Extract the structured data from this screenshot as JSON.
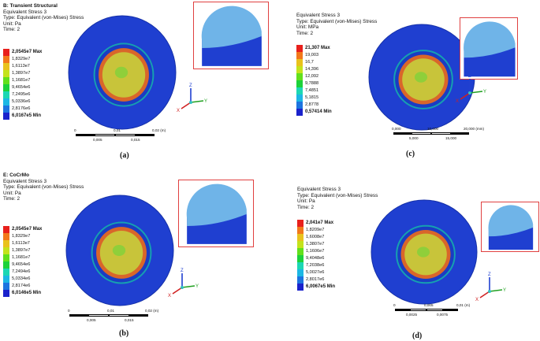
{
  "panels": {
    "a": {
      "title": "B: Transient Structural",
      "lines": [
        "Equivalent Stress 3",
        "Type: Equivalent (von-Mises) Stress",
        "Unit: Pa",
        "Time: 2"
      ],
      "legend": [
        "2,0545e7 Max",
        "1,8329e7",
        "1,6113e7",
        "1,3897e7",
        "1,1681e7",
        "9,4654e6",
        "7,2495e6",
        "5,0336e6",
        "2,8176e6",
        "6,0167e5 Min"
      ],
      "scale": {
        "top": [
          "0",
          "0,01",
          "0,02 (m)"
        ],
        "bottom": [
          "0,005",
          "0,015"
        ]
      },
      "caption": "(a)"
    },
    "c": {
      "title": "",
      "lines": [
        "Equivalent Stress 3",
        "Type: Equivalent (von-Mises) Stress",
        "Unit: MPa",
        "Time: 2"
      ],
      "legend": [
        "21,307 Max",
        "19,003",
        "16,7",
        "14,396",
        "12,092",
        "9,7888",
        "7,4851",
        "5,1815",
        "2,8778",
        "0,57414 Min"
      ],
      "scale": {
        "top": [
          "0,000",
          "10,000",
          "20,000 (mm)"
        ],
        "bottom": [
          "5,000",
          "15,000"
        ]
      },
      "caption": "(c)"
    },
    "b": {
      "title": "E: CoCrMo",
      "lines": [
        "Equivalent Stress 3",
        "Type: Equivalent (von-Mises) Stress",
        "Unit: Pa",
        "Time: 2"
      ],
      "legend": [
        "2,0545e7 Max",
        "1,8329e7",
        "1,6113e7",
        "1,3897e7",
        "1,1681e7",
        "9,4654e6",
        "7,2494e6",
        "5,0334e6",
        "2,8174e6",
        "6,0146e5 Min"
      ],
      "scale": {
        "top": [
          "0",
          "0,01",
          "0,02 (m)"
        ],
        "bottom": [
          "0,005",
          "0,015"
        ]
      },
      "caption": "(b)"
    },
    "d": {
      "title": "",
      "lines": [
        "Equivalent Stress 3",
        "Type: Equivalent (von-Mises) Stress",
        "Unit: Pa",
        "Time: 2"
      ],
      "legend": [
        "2,041e7 Max",
        "1,8209e7",
        "1,6008e7",
        "1,3807e7",
        "1,1606e7",
        "9,4048e6",
        "7,2038e6",
        "5,0027e6",
        "2,8017e6",
        "6,0067e5 Min"
      ],
      "scale": {
        "top": [
          "0",
          "0,005",
          "0,01 (m)"
        ],
        "bottom": [
          "0,0025",
          "0,0075"
        ]
      },
      "caption": "(d)"
    }
  },
  "colors": {
    "legend": [
      "#e8201c",
      "#f2781a",
      "#e9c21c",
      "#c4e31c",
      "#62e01c",
      "#1cd23a",
      "#1cd7b3",
      "#1cb7e4",
      "#1c74e0",
      "#1a22cc"
    ],
    "body": "#1f3fd0",
    "cap": "#6fb4e8",
    "core": "#c8c43a",
    "hot": "#d9662a"
  },
  "axes": {
    "labels": [
      "Z",
      "X",
      "Y"
    ]
  }
}
